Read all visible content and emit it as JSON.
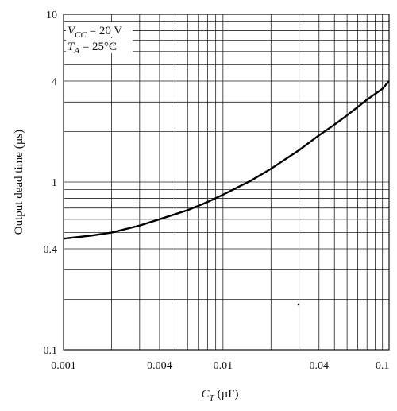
{
  "chart_data": {
    "type": "line",
    "title": "",
    "xlabel": {
      "main": "C",
      "sub": "T",
      "unit": "(µF)"
    },
    "ylabel": "Output dead time (µs)",
    "xscale": "log",
    "yscale": "log",
    "xlim": [
      0.001,
      0.11
    ],
    "ylim": [
      0.1,
      10
    ],
    "grid": true,
    "x_ticks": [
      {
        "value": 0.001,
        "label": "0.001"
      },
      {
        "value": 0.004,
        "label": "0.004"
      },
      {
        "value": 0.01,
        "label": "0.01"
      },
      {
        "value": 0.04,
        "label": "0.04"
      },
      {
        "value": 0.1,
        "label": "0.1"
      }
    ],
    "y_ticks": [
      {
        "value": 0.1,
        "label": "0.1"
      },
      {
        "value": 0.4,
        "label": "0.4"
      },
      {
        "value": 1,
        "label": "1"
      },
      {
        "value": 4,
        "label": "4"
      },
      {
        "value": 10,
        "label": "10"
      }
    ],
    "annotations": [
      {
        "main": "V",
        "sub": "CC",
        "rest": " = 20 V"
      },
      {
        "main": "T",
        "sub": "A",
        "rest": " = 25°C"
      }
    ],
    "series": [
      {
        "x": [
          0.001,
          0.0015,
          0.002,
          0.003,
          0.004,
          0.006,
          0.008,
          0.01,
          0.015,
          0.02,
          0.03,
          0.04,
          0.05,
          0.06,
          0.08,
          0.1,
          0.11
        ],
        "y": [
          0.46,
          0.48,
          0.5,
          0.55,
          0.6,
          0.68,
          0.76,
          0.84,
          1.02,
          1.2,
          1.55,
          1.9,
          2.2,
          2.5,
          3.1,
          3.6,
          4.0
        ]
      }
    ]
  }
}
